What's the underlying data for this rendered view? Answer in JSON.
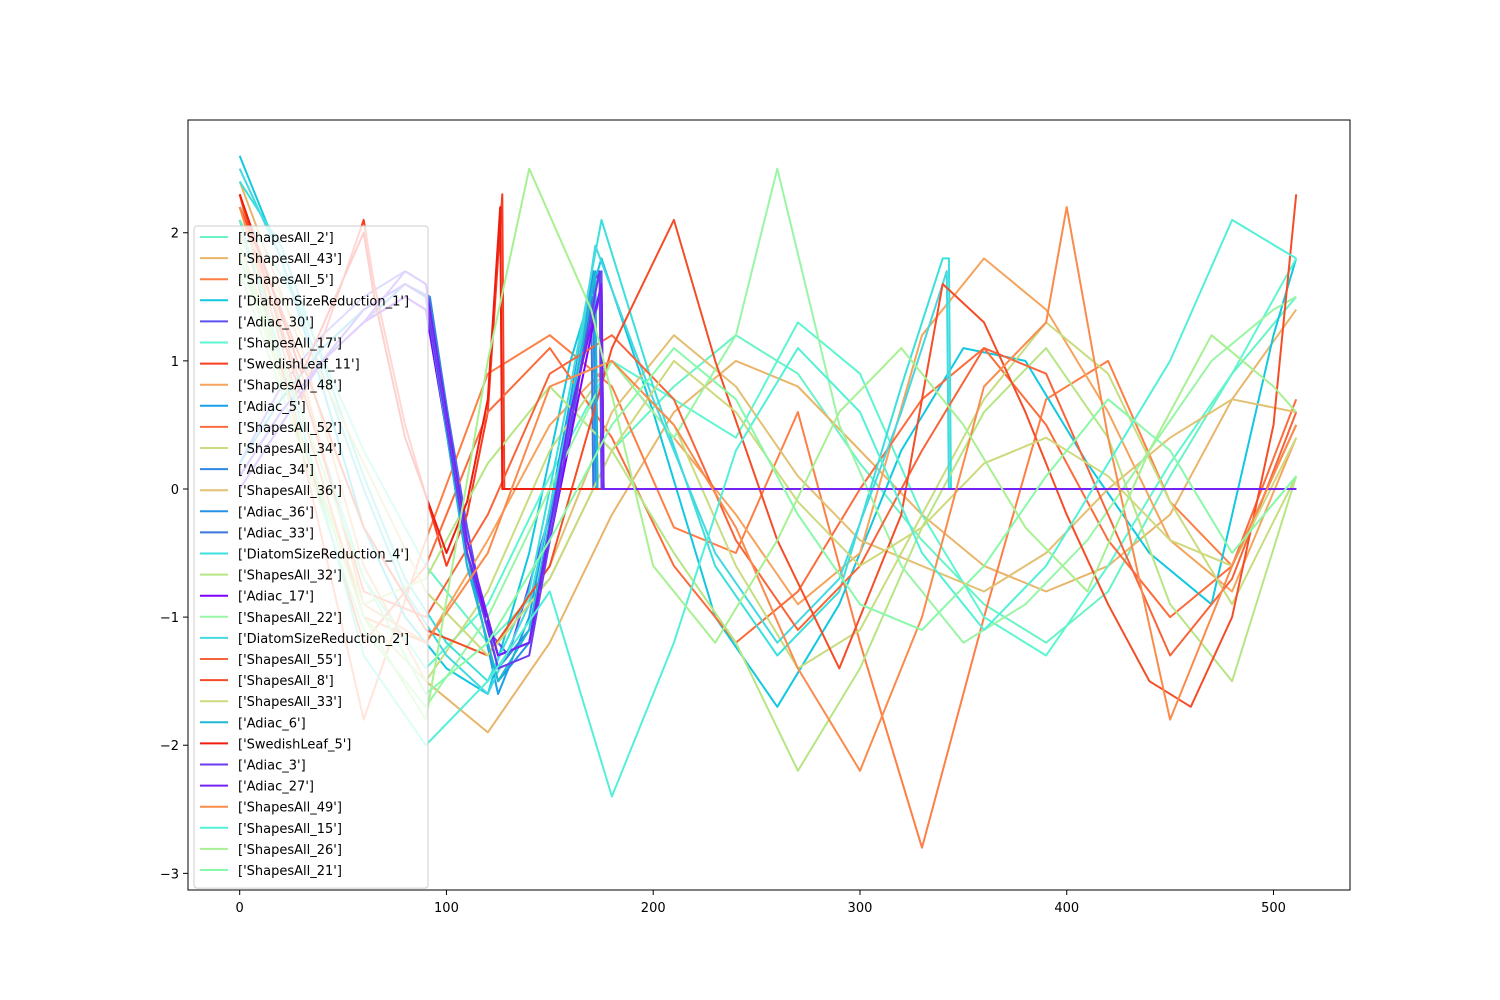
{
  "chart_data": {
    "type": "line",
    "title": "",
    "xlabel": "",
    "ylabel": "",
    "xlim": [
      -25,
      537
    ],
    "ylim": [
      -3.13,
      2.88
    ],
    "x_ticks": [
      0,
      100,
      200,
      300,
      400,
      500
    ],
    "y_ticks": [
      -3,
      -2,
      -1,
      0,
      1,
      2
    ],
    "x_tick_labels": [
      "0",
      "100",
      "200",
      "300",
      "400",
      "500"
    ],
    "y_tick_labels": [
      "−3",
      "−2",
      "−1",
      "0",
      "1",
      "2"
    ],
    "grid": false,
    "legend_position": "center-left",
    "series": [
      {
        "name": "['ShapesAll_2']",
        "color": "#6af3c6",
        "x": [
          0,
          30,
          60,
          90,
          120,
          150,
          180,
          210,
          240,
          270,
          300,
          330,
          360,
          390,
          420,
          450,
          480,
          511
        ],
        "y": [
          2.2,
          1.4,
          0.3,
          -0.6,
          -1.2,
          -0.7,
          0.3,
          0.8,
          1.2,
          0.9,
          0.2,
          -0.4,
          -0.9,
          -1.2,
          -0.8,
          0.1,
          0.9,
          1.5
        ]
      },
      {
        "name": "['ShapesAll_43']",
        "color": "#e9b56a",
        "x": [
          0,
          30,
          60,
          90,
          120,
          150,
          180,
          210,
          240,
          270,
          300,
          330,
          360,
          390,
          420,
          450,
          480,
          511
        ],
        "y": [
          2.4,
          1.1,
          -0.6,
          -1.5,
          -1.9,
          -1.2,
          -0.2,
          0.6,
          1.0,
          0.8,
          0.3,
          -0.2,
          -0.6,
          -0.8,
          -0.6,
          -0.2,
          0.7,
          1.4
        ]
      },
      {
        "name": "['ShapesAll_5']",
        "color": "#fe7e45",
        "x": [
          0,
          30,
          60,
          90,
          120,
          150,
          180,
          210,
          240,
          270,
          300,
          330,
          360,
          390,
          420,
          450,
          480,
          511
        ],
        "y": [
          2.3,
          0.3,
          -1.8,
          -0.4,
          0.9,
          1.2,
          0.8,
          -0.3,
          -0.5,
          0.6,
          -1.2,
          -2.8,
          -1.0,
          0.7,
          1.0,
          -0.1,
          -0.6,
          0.5
        ]
      },
      {
        "name": "['DiatomSizeReduction_1']",
        "color": "#12c8e1",
        "x": [
          0,
          20,
          40,
          60,
          80,
          100,
          120,
          140,
          160,
          175,
          200,
          230,
          260,
          290,
          320,
          350,
          380,
          410,
          440,
          470,
          500,
          511
        ],
        "y": [
          2.6,
          1.8,
          0.8,
          -0.3,
          -1.0,
          -1.4,
          -1.6,
          -0.5,
          1.0,
          1.8,
          0.6,
          -1.0,
          -1.7,
          -0.9,
          0.3,
          1.1,
          1.0,
          0.2,
          -0.5,
          -0.9,
          1.2,
          1.8
        ]
      },
      {
        "name": "['Adiac_30']",
        "color": "#5e4ff2",
        "x": [
          0,
          20,
          40,
          60,
          80,
          90,
          110,
          120,
          130,
          150,
          170,
          175,
          176,
          511
        ],
        "y": [
          0.2,
          0.8,
          1.2,
          1.5,
          1.7,
          1.6,
          -0.3,
          -1.1,
          -1.3,
          -0.2,
          1.6,
          1.7,
          0,
          0
        ]
      },
      {
        "name": "['ShapesAll_17']",
        "color": "#5ef6d0",
        "x": [
          0,
          30,
          60,
          90,
          120,
          150,
          180,
          210,
          240,
          270,
          300,
          330,
          360,
          390,
          420,
          450,
          480,
          511
        ],
        "y": [
          2.0,
          0.8,
          -0.7,
          -1.4,
          -0.9,
          0.1,
          1.0,
          0.7,
          0.4,
          1.3,
          0.9,
          -0.2,
          -1.0,
          -1.3,
          -0.6,
          0.2,
          0.9,
          1.8
        ]
      },
      {
        "name": "['SwedishLeaf_11']",
        "color": "#f83c1f",
        "x": [
          0,
          30,
          60,
          65,
          80,
          100,
          110,
          120,
          127,
          128,
          511
        ],
        "y": [
          2.3,
          0.7,
          2.1,
          1.6,
          0.5,
          -0.6,
          -0.2,
          0.6,
          2.3,
          0,
          0
        ]
      },
      {
        "name": "['ShapesAll_48']",
        "color": "#f6a45d",
        "x": [
          0,
          30,
          60,
          90,
          120,
          150,
          180,
          210,
          240,
          270,
          300,
          330,
          360,
          390,
          420,
          450,
          480,
          511
        ],
        "y": [
          2.3,
          0.9,
          -0.9,
          -1.2,
          -0.4,
          0.5,
          1.0,
          0.4,
          -0.2,
          -0.9,
          -0.5,
          1.2,
          1.8,
          1.4,
          0.6,
          -0.4,
          -0.8,
          0.4
        ]
      },
      {
        "name": "['Adiac_5']",
        "color": "#1aa0e8",
        "x": [
          0,
          20,
          40,
          60,
          80,
          90,
          110,
          125,
          140,
          160,
          172,
          173,
          511
        ],
        "y": [
          0.1,
          0.6,
          1.0,
          1.4,
          1.6,
          1.5,
          -0.5,
          -1.6,
          -1.0,
          0.7,
          1.7,
          0,
          0
        ]
      },
      {
        "name": "['ShapesAll_52']",
        "color": "#fc6b3b",
        "x": [
          0,
          30,
          60,
          90,
          120,
          150,
          180,
          210,
          240,
          270,
          300,
          330,
          360,
          390,
          420,
          450,
          480,
          511
        ],
        "y": [
          2.1,
          0.4,
          -1.2,
          -0.6,
          0.6,
          1.1,
          0.4,
          -0.6,
          -1.2,
          -0.8,
          0.0,
          0.7,
          1.1,
          0.5,
          -0.4,
          -1.0,
          -0.6,
          0.7
        ]
      },
      {
        "name": "['ShapesAll_34']",
        "color": "#c7dd7f",
        "x": [
          0,
          30,
          60,
          90,
          120,
          150,
          180,
          210,
          240,
          270,
          300,
          330,
          360,
          390,
          420,
          450,
          480,
          511
        ],
        "y": [
          1.9,
          0.6,
          -1.0,
          -1.5,
          -0.8,
          0.3,
          1.0,
          0.5,
          -0.6,
          -1.4,
          -1.1,
          -0.2,
          0.7,
          1.3,
          0.9,
          -0.1,
          -0.9,
          0.1
        ]
      },
      {
        "name": "['Adiac_34']",
        "color": "#2f87e3",
        "x": [
          0,
          20,
          40,
          60,
          80,
          92,
          110,
          125,
          140,
          160,
          172,
          173,
          511
        ],
        "y": [
          0.0,
          0.5,
          1.0,
          1.3,
          1.6,
          1.5,
          -0.4,
          -1.4,
          -1.1,
          0.5,
          1.6,
          0,
          0
        ]
      },
      {
        "name": "['ShapesAll_36']",
        "color": "#e2c173",
        "x": [
          0,
          30,
          60,
          90,
          120,
          150,
          180,
          210,
          240,
          270,
          300,
          330,
          360,
          390,
          420,
          450,
          480,
          511
        ],
        "y": [
          2.0,
          1.0,
          -0.3,
          -1.1,
          -1.3,
          -0.6,
          0.6,
          1.2,
          0.8,
          0.1,
          -0.4,
          -0.6,
          -0.8,
          -0.5,
          0.0,
          0.4,
          0.7,
          0.6
        ]
      },
      {
        "name": "['Adiac_36']",
        "color": "#2592e7",
        "x": [
          0,
          20,
          40,
          60,
          80,
          90,
          110,
          125,
          140,
          160,
          171,
          172,
          511
        ],
        "y": [
          0.2,
          0.7,
          1.1,
          1.4,
          1.6,
          1.5,
          -0.6,
          -1.5,
          -1.2,
          0.6,
          1.7,
          0,
          0
        ]
      },
      {
        "name": "['Adiac_33']",
        "color": "#3b76dc",
        "x": [
          0,
          20,
          40,
          60,
          80,
          90,
          110,
          125,
          140,
          160,
          170,
          171,
          511
        ],
        "y": [
          0.1,
          0.6,
          1.0,
          1.3,
          1.5,
          1.4,
          -0.5,
          -1.3,
          -1.2,
          0.4,
          1.5,
          0,
          0
        ]
      },
      {
        "name": "['DiatomSizeReduction_4']",
        "color": "#3ae0dc",
        "x": [
          0,
          20,
          40,
          60,
          80,
          100,
          120,
          140,
          160,
          175,
          200,
          230,
          260,
          290,
          320,
          340,
          343,
          344,
          511
        ],
        "y": [
          2.4,
          1.9,
          1.0,
          0.1,
          -0.7,
          -1.2,
          -1.5,
          -0.8,
          0.8,
          2.1,
          0.8,
          -0.6,
          -1.3,
          -0.8,
          0.8,
          1.8,
          1.8,
          0,
          0
        ]
      },
      {
        "name": "['ShapesAll_32']",
        "color": "#b6e684",
        "x": [
          0,
          30,
          60,
          90,
          120,
          150,
          180,
          210,
          240,
          270,
          300,
          330,
          360,
          390,
          420,
          450,
          480,
          511
        ],
        "y": [
          1.8,
          0.4,
          -0.9,
          -0.7,
          0.2,
          0.8,
          0.3,
          -0.5,
          -1.2,
          -2.2,
          -1.4,
          -0.3,
          0.6,
          1.1,
          0.4,
          -0.9,
          -1.5,
          0.1
        ]
      },
      {
        "name": "['Adiac_17']",
        "color": "#7f00ff",
        "x": [
          0,
          20,
          40,
          60,
          80,
          90,
          110,
          125,
          140,
          160,
          175,
          176,
          511
        ],
        "y": [
          0.1,
          0.6,
          1.0,
          1.3,
          1.5,
          1.4,
          -0.5,
          -1.3,
          -1.2,
          0.4,
          1.6,
          0,
          0
        ]
      },
      {
        "name": "['ShapesAll_22']",
        "color": "#98f6a6",
        "x": [
          0,
          30,
          60,
          90,
          120,
          150,
          180,
          210,
          240,
          260,
          290,
          320,
          350,
          380,
          410,
          440,
          470,
          500,
          511
        ],
        "y": [
          1.7,
          0.3,
          -1.1,
          -1.7,
          -1.0,
          0.0,
          1.0,
          0.4,
          1.2,
          2.5,
          0.5,
          -0.6,
          -1.2,
          -0.9,
          -0.4,
          0.3,
          1.0,
          1.4,
          1.5
        ]
      },
      {
        "name": "['DiatomSizeReduction_2']",
        "color": "#44d8e1",
        "x": [
          0,
          20,
          40,
          60,
          80,
          100,
          120,
          140,
          160,
          172,
          200,
          230,
          260,
          290,
          320,
          342,
          343,
          511
        ],
        "y": [
          2.5,
          1.8,
          0.9,
          0.0,
          -0.8,
          -1.3,
          -1.6,
          -0.9,
          0.6,
          1.9,
          0.7,
          -0.5,
          -1.2,
          -0.7,
          0.6,
          1.7,
          0,
          0
        ]
      },
      {
        "name": "['ShapesAll_55']",
        "color": "#f8643a",
        "x": [
          0,
          30,
          60,
          90,
          120,
          150,
          180,
          210,
          240,
          270,
          300,
          330,
          360,
          390,
          420,
          450,
          480,
          511
        ],
        "y": [
          2.2,
          0.8,
          -0.8,
          -1.0,
          -0.2,
          0.9,
          1.2,
          0.7,
          -0.4,
          -1.1,
          -0.6,
          0.3,
          1.1,
          0.9,
          -0.2,
          -1.3,
          -0.7,
          0.6
        ]
      },
      {
        "name": "['ShapesAll_8']",
        "color": "#f44d27",
        "x": [
          0,
          30,
          60,
          90,
          120,
          150,
          180,
          210,
          230,
          260,
          290,
          320,
          340,
          360,
          380,
          400,
          420,
          440,
          460,
          480,
          500,
          511
        ],
        "y": [
          2.2,
          1.0,
          -0.3,
          -1.1,
          -1.3,
          -0.6,
          1.1,
          2.1,
          1.0,
          -0.4,
          -1.4,
          -0.2,
          1.6,
          1.3,
          0.6,
          -0.2,
          -0.9,
          -1.5,
          -1.7,
          -1.0,
          0.5,
          2.3
        ]
      },
      {
        "name": "['ShapesAll_33']",
        "color": "#cfd97c",
        "x": [
          0,
          30,
          60,
          90,
          120,
          150,
          180,
          210,
          240,
          270,
          300,
          330,
          360,
          390,
          420,
          450,
          480,
          511
        ],
        "y": [
          2.1,
          1.2,
          0.2,
          -0.8,
          -1.3,
          -0.7,
          0.3,
          1.0,
          0.6,
          -0.1,
          -0.6,
          -0.3,
          0.2,
          0.4,
          0.1,
          -0.4,
          -0.6,
          0.4
        ]
      },
      {
        "name": "['Adiac_6']",
        "color": "#1fb8d3",
        "x": [
          0,
          20,
          40,
          60,
          80,
          90,
          110,
          125,
          140,
          160,
          172,
          173,
          511
        ],
        "y": [
          0.2,
          0.7,
          1.1,
          1.4,
          1.6,
          1.5,
          -0.6,
          -1.5,
          -1.1,
          0.6,
          1.7,
          0,
          0
        ]
      },
      {
        "name": "['SwedishLeaf_5']",
        "color": "#ef1c10",
        "x": [
          0,
          30,
          60,
          65,
          80,
          100,
          110,
          120,
          126,
          127,
          511
        ],
        "y": [
          2.3,
          0.9,
          2.0,
          1.5,
          0.4,
          -0.5,
          -0.1,
          0.7,
          2.2,
          0,
          0
        ]
      },
      {
        "name": "['Adiac_3']",
        "color": "#6a3bf0",
        "x": [
          0,
          20,
          40,
          60,
          80,
          90,
          110,
          125,
          140,
          160,
          174,
          175,
          511
        ],
        "y": [
          0.1,
          0.6,
          1.0,
          1.4,
          1.6,
          1.5,
          -0.5,
          -1.4,
          -1.3,
          0.5,
          1.7,
          0,
          0
        ]
      },
      {
        "name": "['Adiac_27']",
        "color": "#7422f5",
        "x": [
          0,
          20,
          40,
          60,
          80,
          90,
          110,
          125,
          140,
          160,
          175,
          176,
          511
        ],
        "y": [
          0.0,
          0.5,
          1.0,
          1.3,
          1.7,
          1.6,
          -0.4,
          -1.3,
          -1.2,
          0.6,
          1.6,
          0,
          0
        ]
      },
      {
        "name": "['ShapesAll_49']",
        "color": "#fa8b4c",
        "x": [
          0,
          30,
          60,
          90,
          120,
          150,
          180,
          210,
          240,
          270,
          300,
          330,
          360,
          390,
          400,
          420,
          450,
          480,
          511
        ],
        "y": [
          2.2,
          0.6,
          -1.0,
          -1.2,
          -0.5,
          0.8,
          1.0,
          0.5,
          -0.3,
          -1.4,
          -2.2,
          -1.0,
          0.8,
          1.3,
          2.2,
          0.4,
          -1.8,
          -0.6,
          0.5
        ]
      },
      {
        "name": "['ShapesAll_15']",
        "color": "#53f0d8",
        "x": [
          0,
          30,
          60,
          90,
          120,
          150,
          180,
          210,
          240,
          270,
          300,
          330,
          360,
          390,
          420,
          450,
          480,
          511
        ],
        "y": [
          2.1,
          0.5,
          -1.3,
          -2.0,
          -1.5,
          -0.8,
          -2.4,
          -1.2,
          0.3,
          1.1,
          0.6,
          -0.5,
          -1.1,
          -0.6,
          0.2,
          1.0,
          2.1,
          1.8
        ]
      },
      {
        "name": "['ShapesAll_26']",
        "color": "#a7f192",
        "x": [
          0,
          30,
          60,
          90,
          120,
          140,
          170,
          200,
          230,
          260,
          290,
          320,
          350,
          380,
          410,
          440,
          470,
          500,
          511
        ],
        "y": [
          1.9,
          0.4,
          -1.0,
          -1.8,
          1.0,
          2.5,
          1.4,
          -0.6,
          -1.2,
          -0.4,
          0.6,
          1.1,
          0.5,
          -0.3,
          -0.8,
          0.3,
          1.2,
          0.8,
          0.6
        ]
      },
      {
        "name": "['ShapesAll_21']",
        "color": "#88f9a8",
        "x": [
          0,
          30,
          60,
          90,
          120,
          150,
          180,
          210,
          240,
          270,
          300,
          330,
          360,
          390,
          420,
          450,
          480,
          511
        ],
        "y": [
          1.8,
          0.6,
          -0.7,
          -1.6,
          -1.2,
          -0.4,
          0.5,
          1.1,
          0.7,
          -0.2,
          -0.9,
          -1.1,
          -0.6,
          0.1,
          0.7,
          0.3,
          -0.5,
          0.1
        ]
      }
    ]
  }
}
